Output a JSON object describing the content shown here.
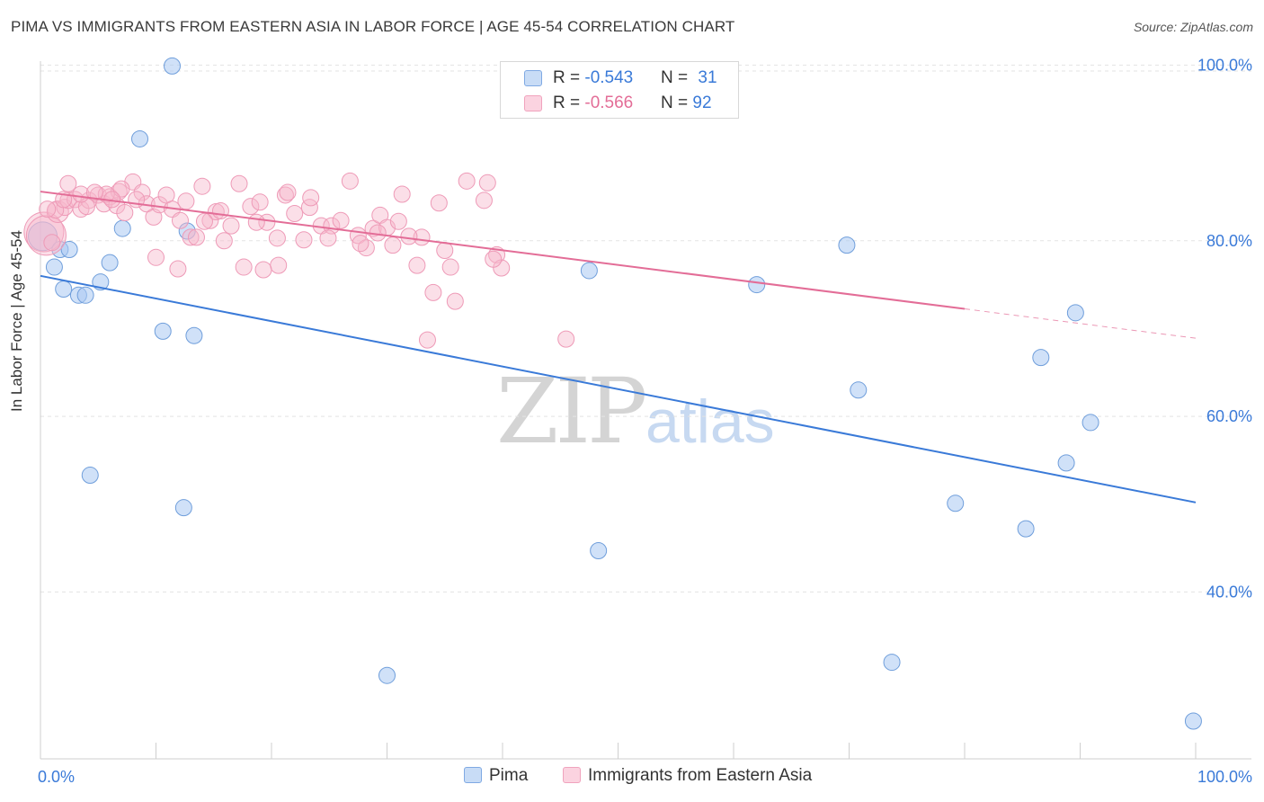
{
  "title": "PIMA VS IMMIGRANTS FROM EASTERN ASIA IN LABOR FORCE | AGE 45-54 CORRELATION CHART",
  "source": "Source: ZipAtlas.com",
  "watermark": {
    "zip": "ZIP",
    "atlas": "atlas"
  },
  "legend_top": {
    "rows": [
      {
        "r_label": "R = ",
        "r_value": "-0.543",
        "n_label": "N = ",
        "n_value": "31",
        "color": "#a9c8f2"
      },
      {
        "r_label": "R = ",
        "r_value": "-0.566",
        "n_label": "N = ",
        "n_value": "92",
        "color": "#f6b8cc"
      }
    ]
  },
  "legend_bottom": {
    "pima": "Pima",
    "asia": "Immigrants from Eastern Asia"
  },
  "chart_data": {
    "type": "scatter",
    "title": "PIMA VS IMMIGRANTS FROM EASTERN ASIA IN LABOR FORCE | AGE 45-54 CORRELATION CHART",
    "xlabel": "",
    "ylabel": "In Labor Force | Age 45-54",
    "xlim": [
      0,
      100
    ],
    "ylim": [
      21,
      102.5
    ],
    "x_tick_labels": [
      "0.0%",
      "100.0%"
    ],
    "y_ticks": [
      40,
      60,
      80,
      100
    ],
    "y_tick_labels": [
      "40.0%",
      "60.0%",
      "80.0%",
      "100.0%"
    ],
    "grid": true,
    "legend_position": "bottom",
    "colors": {
      "pima": "#3a7ad8",
      "pima_fill": "#a9c8f2",
      "asia": "#e36d97",
      "asia_fill": "#f6b8cc"
    },
    "series": [
      {
        "name": "Pima",
        "x": [
          0.2,
          1.2,
          2.0,
          1.7,
          2.5,
          3.3,
          5.2,
          3.9,
          8.6,
          7.1,
          6.0,
          10.6,
          13.3,
          12.7,
          11.4,
          4.3,
          12.4,
          30.0,
          48.3,
          47.5,
          62.0,
          70.8,
          73.7,
          69.8,
          79.2,
          85.3,
          86.6,
          88.8,
          89.6,
          90.9,
          99.8
        ],
        "y": [
          80.5,
          77.0,
          74.5,
          79.0,
          79.0,
          73.8,
          75.3,
          73.8,
          91.6,
          81.4,
          77.5,
          69.7,
          69.2,
          81.1,
          99.9,
          53.3,
          49.6,
          30.5,
          44.7,
          76.6,
          75.0,
          63.0,
          32.0,
          79.5,
          50.1,
          47.2,
          66.7,
          54.7,
          71.8,
          59.3,
          25.3
        ],
        "sizes": [
          16,
          9,
          9,
          9,
          9,
          9,
          9,
          9,
          9,
          9,
          9,
          9,
          9,
          9,
          9,
          9,
          9,
          9,
          9,
          9,
          9,
          9,
          9,
          9,
          9,
          9,
          9,
          9,
          9,
          9,
          9
        ]
      },
      {
        "name": "Immigrants from Eastern Asia",
        "x": [
          0.3,
          0.5,
          1.5,
          2.1,
          1.3,
          2.4,
          3.0,
          3.5,
          4.2,
          5.0,
          5.5,
          6.0,
          6.6,
          6.8,
          7.3,
          8.0,
          8.8,
          9.2,
          9.8,
          10.3,
          10.9,
          11.4,
          12.1,
          12.6,
          13.0,
          13.5,
          14.0,
          14.7,
          15.2,
          15.6,
          16.5,
          17.2,
          18.2,
          19.0,
          19.6,
          20.5,
          21.2,
          22.0,
          22.8,
          23.3,
          24.3,
          25.2,
          26.0,
          26.8,
          27.5,
          28.2,
          28.8,
          29.4,
          30.0,
          30.5,
          31.0,
          33.0,
          34.5,
          35.0,
          38.4,
          39.5,
          45.5,
          39.9,
          39.2,
          38.7,
          36.9,
          35.9,
          35.5,
          34.0,
          33.5,
          32.6,
          31.9,
          31.3,
          29.2,
          27.7,
          24.9,
          23.4,
          21.4,
          20.6,
          19.3,
          18.7,
          17.6,
          15.9,
          14.2,
          11.9,
          10.0,
          8.3,
          7.0,
          5.7,
          4.0,
          2.0,
          1.0,
          0.6,
          2.4,
          3.5,
          4.7,
          6.2
        ],
        "y": [
          81.0,
          80.6,
          83.3,
          83.8,
          83.5,
          84.6,
          84.7,
          83.6,
          84.6,
          85.2,
          84.2,
          85.0,
          84.0,
          85.6,
          83.2,
          86.7,
          85.5,
          84.2,
          82.7,
          84.1,
          85.2,
          83.6,
          82.3,
          84.5,
          80.4,
          80.4,
          86.2,
          82.3,
          83.3,
          83.4,
          81.7,
          86.5,
          83.9,
          84.4,
          82.1,
          80.3,
          85.2,
          83.1,
          80.1,
          83.8,
          81.7,
          81.7,
          82.3,
          86.8,
          80.6,
          79.2,
          81.4,
          82.9,
          81.5,
          79.5,
          82.2,
          80.4,
          84.3,
          78.9,
          84.6,
          78.4,
          68.8,
          76.9,
          77.9,
          86.6,
          86.8,
          73.1,
          77.0,
          74.1,
          68.7,
          77.2,
          80.5,
          85.3,
          80.9,
          79.7,
          80.3,
          84.9,
          85.5,
          77.2,
          76.7,
          82.1,
          77.0,
          80.0,
          82.2,
          76.8,
          78.1,
          84.7,
          85.9,
          85.3,
          83.9,
          84.7,
          79.8,
          83.6,
          86.5,
          85.3,
          85.5,
          84.7
        ],
        "sizes": [
          22,
          22,
          12,
          9,
          9,
          9,
          9,
          9,
          9,
          9,
          9,
          9,
          9,
          9,
          9,
          9,
          9,
          9,
          9,
          9,
          9,
          9,
          9,
          9,
          9,
          9,
          9,
          9,
          9,
          9,
          9,
          9,
          9,
          9,
          9,
          9,
          9,
          9,
          9,
          9,
          9,
          9,
          9,
          9,
          9,
          9,
          9,
          9,
          9,
          9,
          9,
          9,
          9,
          9,
          9,
          9,
          9,
          9,
          9,
          9,
          9,
          9,
          9,
          9,
          9,
          9,
          9,
          9,
          9,
          9,
          9,
          9,
          9,
          9,
          9,
          9,
          9,
          9,
          9,
          9,
          9,
          9,
          9,
          9,
          9,
          9,
          9,
          9,
          9,
          9,
          9,
          9
        ]
      }
    ],
    "trend_lines": [
      {
        "series": "Pima",
        "x": [
          0,
          100
        ],
        "y": [
          76.0,
          50.2
        ],
        "dashed_from": null
      },
      {
        "series": "Immigrants from Eastern Asia",
        "x": [
          0,
          100
        ],
        "y": [
          85.6,
          68.9
        ],
        "dashed_from": 80
      }
    ]
  }
}
